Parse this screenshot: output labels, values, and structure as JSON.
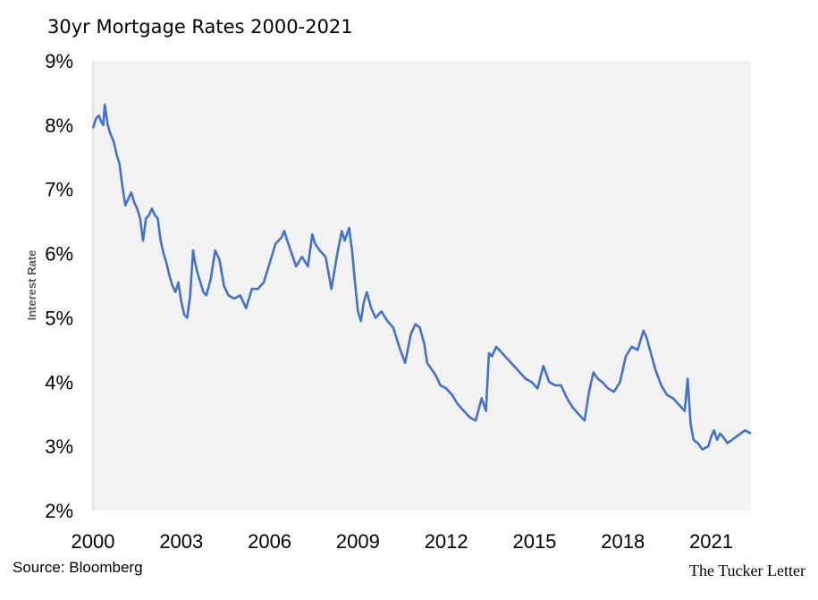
{
  "chart_data": {
    "type": "line",
    "title": "30yr Mortgage Rates 2000-2021",
    "ylabel": "Interest Rate",
    "xlabel": "",
    "source": "Source: Bloomberg",
    "brand": "The Tucker Letter",
    "ylim": [
      2,
      9
    ],
    "xlim": [
      2000,
      2022.35
    ],
    "yticks": [
      "2%",
      "3%",
      "4%",
      "5%",
      "6%",
      "7%",
      "8%",
      "9%"
    ],
    "xticks": [
      {
        "value": 2000,
        "label": "2000"
      },
      {
        "value": 2003,
        "label": "2003"
      },
      {
        "value": 2006,
        "label": "2006"
      },
      {
        "value": 2009,
        "label": "2009"
      },
      {
        "value": 2012,
        "label": "2012"
      },
      {
        "value": 2015,
        "label": "2015"
      },
      {
        "value": 2018,
        "label": "2018"
      },
      {
        "value": 2021,
        "label": "2021"
      }
    ],
    "plot_background": "#f2f2f2",
    "line_color": "#4472c4",
    "grid": false,
    "series": [
      {
        "x": [
          2000.0,
          2000.1,
          2000.2,
          2000.28,
          2000.35,
          2000.4,
          2000.5,
          2000.6,
          2000.7,
          2000.8,
          2000.9,
          2001.0,
          2001.1,
          2001.2,
          2001.3,
          2001.4,
          2001.5,
          2001.6,
          2001.7,
          2001.8,
          2001.9,
          2002.0,
          2002.1,
          2002.2,
          2002.3,
          2002.4,
          2002.5,
          2002.6,
          2002.7,
          2002.8,
          2002.9,
          2003.0,
          2003.1,
          2003.2,
          2003.3,
          2003.4,
          2003.45,
          2003.55,
          2003.65,
          2003.75,
          2003.85,
          2004.0,
          2004.15,
          2004.3,
          2004.45,
          2004.6,
          2004.8,
          2005.0,
          2005.2,
          2005.4,
          2005.6,
          2005.8,
          2006.0,
          2006.2,
          2006.4,
          2006.5,
          2006.6,
          2006.75,
          2006.9,
          2007.1,
          2007.3,
          2007.45,
          2007.55,
          2007.7,
          2007.9,
          2008.1,
          2008.3,
          2008.45,
          2008.55,
          2008.7,
          2008.8,
          2008.9,
          2009.0,
          2009.1,
          2009.2,
          2009.3,
          2009.45,
          2009.6,
          2009.8,
          2010.0,
          2010.2,
          2010.4,
          2010.6,
          2010.8,
          2010.95,
          2011.1,
          2011.25,
          2011.35,
          2011.5,
          2011.65,
          2011.8,
          2012.0,
          2012.2,
          2012.4,
          2012.6,
          2012.8,
          2013.0,
          2013.2,
          2013.35,
          2013.45,
          2013.55,
          2013.7,
          2013.9,
          2014.1,
          2014.3,
          2014.5,
          2014.7,
          2014.9,
          2015.1,
          2015.3,
          2015.5,
          2015.7,
          2015.9,
          2016.1,
          2016.3,
          2016.5,
          2016.7,
          2016.85,
          2017.0,
          2017.15,
          2017.3,
          2017.5,
          2017.7,
          2017.9,
          2018.1,
          2018.3,
          2018.5,
          2018.7,
          2018.8,
          2018.95,
          2019.1,
          2019.3,
          2019.5,
          2019.7,
          2019.9,
          2020.1,
          2020.2,
          2020.3,
          2020.4,
          2020.55,
          2020.7,
          2020.9,
          2021.0,
          2021.1,
          2021.2,
          2021.3,
          2021.4,
          2021.55,
          2021.7,
          2021.85,
          2022.0,
          2022.15,
          2022.35
        ],
        "y": [
          7.95,
          8.1,
          8.15,
          8.05,
          8.0,
          8.32,
          8.0,
          7.85,
          7.75,
          7.55,
          7.4,
          7.05,
          6.75,
          6.85,
          6.95,
          6.8,
          6.7,
          6.55,
          6.2,
          6.55,
          6.6,
          6.7,
          6.6,
          6.55,
          6.2,
          6.0,
          5.85,
          5.65,
          5.5,
          5.4,
          5.55,
          5.25,
          5.05,
          5.0,
          5.35,
          6.05,
          5.9,
          5.7,
          5.55,
          5.4,
          5.35,
          5.6,
          6.05,
          5.9,
          5.5,
          5.35,
          5.3,
          5.35,
          5.15,
          5.45,
          5.45,
          5.55,
          5.85,
          6.15,
          6.25,
          6.35,
          6.2,
          6.0,
          5.8,
          5.95,
          5.8,
          6.3,
          6.15,
          6.05,
          5.95,
          5.45,
          6.0,
          6.35,
          6.2,
          6.4,
          6.05,
          5.55,
          5.1,
          4.95,
          5.25,
          5.4,
          5.15,
          5.0,
          5.1,
          4.95,
          4.85,
          4.55,
          4.3,
          4.75,
          4.9,
          4.85,
          4.6,
          4.3,
          4.2,
          4.1,
          3.95,
          3.9,
          3.8,
          3.65,
          3.55,
          3.45,
          3.4,
          3.75,
          3.55,
          4.45,
          4.4,
          4.55,
          4.45,
          4.35,
          4.25,
          4.15,
          4.05,
          4.0,
          3.9,
          4.25,
          4.0,
          3.95,
          3.95,
          3.75,
          3.6,
          3.5,
          3.4,
          3.85,
          4.15,
          4.05,
          4.0,
          3.9,
          3.85,
          4.0,
          4.4,
          4.55,
          4.5,
          4.8,
          4.7,
          4.45,
          4.2,
          3.95,
          3.8,
          3.75,
          3.65,
          3.55,
          4.05,
          3.35,
          3.1,
          3.05,
          2.95,
          3.0,
          3.15,
          3.25,
          3.1,
          3.2,
          3.15,
          3.05,
          3.1,
          3.15,
          3.2,
          3.25,
          3.2
        ]
      }
    ]
  }
}
